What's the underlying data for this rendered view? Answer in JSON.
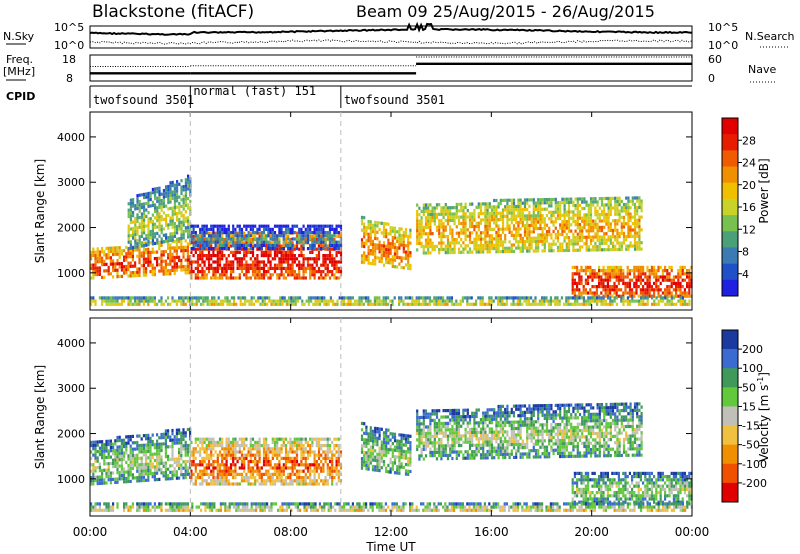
{
  "header": {
    "station": "Blackstone (fitACF)",
    "beam_date": "Beam 09  25/Aug/2015 - 26/Aug/2015"
  },
  "noise_panel": {
    "left_label": "N.Sky",
    "left_ticks": [
      "10^5",
      "10^0"
    ],
    "right_ticks": [
      "10^5",
      "10^0"
    ],
    "right_label": "N.Search"
  },
  "freq_panel": {
    "left_label_line1": "Freq.",
    "left_label_line2": "[MHz]",
    "left_ticks": [
      "18",
      "8"
    ],
    "right_ticks": [
      "60",
      "0"
    ],
    "right_label": "Nave",
    "cpid_label": "CPID",
    "freq_series": [
      {
        "start": 0.0,
        "end": 4.0,
        "value": 10.6
      },
      {
        "start": 4.0,
        "end": 13.0,
        "value": 10.6
      },
      {
        "start": 13.0,
        "end": 24.0,
        "value": 14.9
      }
    ],
    "nave_series": [
      {
        "start": 0.0,
        "end": 4.0,
        "value": 34
      },
      {
        "start": 4.0,
        "end": 13.0,
        "value": 36
      },
      {
        "start": 13.0,
        "end": 24.0,
        "value": 60
      }
    ]
  },
  "cpid_modes": [
    {
      "label": "twofsound 3501",
      "start": 0.0
    },
    {
      "label": "normal (fast) 151",
      "start": 4.0
    },
    {
      "label": "twofsound 3501",
      "start": 10.0
    }
  ],
  "power_panel": {
    "ylabel": "Slant Range [km]",
    "yticks": [
      "1000",
      "2000",
      "3000",
      "4000"
    ],
    "colorbar_label": "Power [dB]",
    "colorbar_ticks": [
      "4",
      "8",
      "12",
      "16",
      "20",
      "24",
      "28"
    ]
  },
  "velocity_panel": {
    "ylabel": "Slant Range [km]",
    "yticks": [
      "1000",
      "2000",
      "3000",
      "4000"
    ],
    "colorbar_label": "Velocity [m s",
    "colorbar_label_sup": "-1",
    "colorbar_label_end": "]",
    "colorbar_ticks": [
      "200",
      "100",
      "50",
      "15",
      "-15",
      "-50",
      "-100",
      "-200"
    ]
  },
  "xaxis": {
    "label": "Time UT",
    "ticks": [
      "00:00",
      "04:00",
      "08:00",
      "12:00",
      "16:00",
      "20:00",
      "00:00"
    ]
  },
  "chart_data": {
    "type": "heatmap",
    "x_range_hours": [
      0,
      24
    ],
    "y_range_km": [
      180,
      4550
    ],
    "power_colors": [
      "#2020e0",
      "#2050c8",
      "#3c7ab4",
      "#4aa078",
      "#78c050",
      "#c8d228",
      "#f0c000",
      "#f09000",
      "#f05a00",
      "#e81c00",
      "#e00000"
    ],
    "velocity_colors": [
      "#1b3aa0",
      "#3b6bd0",
      "#3f9a5a",
      "#62c83c",
      "#c0c0b8",
      "#f0c040",
      "#f09000",
      "#f05000",
      "#e00000"
    ],
    "power_regions": [
      {
        "t0": 0.0,
        "t1": 4.0,
        "r_lo": 850,
        "r_hi": 1500,
        "level": 9,
        "slope": 0.4
      },
      {
        "t0": 1.5,
        "t1": 4.0,
        "r_lo": 1500,
        "r_hi": 2600,
        "level": 5,
        "slope": 0.9
      },
      {
        "t0": 4.0,
        "t1": 10.0,
        "r_lo": 850,
        "r_hi": 1900,
        "level": 10,
        "slope": 0.0
      },
      {
        "t0": 4.0,
        "t1": 10.0,
        "r_lo": 1500,
        "r_hi": 2000,
        "level": 3,
        "slope": 0.0
      },
      {
        "t0": 10.8,
        "t1": 12.8,
        "r_lo": 1200,
        "r_hi": 2200,
        "level": 8,
        "slope": -0.5
      },
      {
        "t0": 13.0,
        "t1": 22.0,
        "r_lo": 1400,
        "r_hi": 2500,
        "level": 7,
        "slope": 0.3
      },
      {
        "t0": 19.2,
        "t1": 24.0,
        "r_lo": 450,
        "r_hi": 1100,
        "level": 10,
        "slope": 0.0
      },
      {
        "t0": 0.0,
        "t1": 24.0,
        "r_lo": 200,
        "r_hi": 420,
        "level": 6,
        "slope": 0.0
      }
    ],
    "velocity_regions": [
      {
        "t0": 0.0,
        "t1": 4.0,
        "r_lo": 850,
        "r_hi": 1800,
        "level": 4,
        "slope": 0.5
      },
      {
        "t0": 4.0,
        "t1": 10.0,
        "r_lo": 850,
        "r_hi": 1900,
        "level": 7,
        "slope": 0.0
      },
      {
        "t0": 10.8,
        "t1": 12.8,
        "r_lo": 1200,
        "r_hi": 2200,
        "level": 4,
        "slope": -0.5
      },
      {
        "t0": 13.0,
        "t1": 22.0,
        "r_lo": 1400,
        "r_hi": 2500,
        "level": 4,
        "slope": 0.3
      },
      {
        "t0": 19.2,
        "t1": 24.0,
        "r_lo": 450,
        "r_hi": 1100,
        "level": 4,
        "slope": 0.0
      },
      {
        "t0": 0.0,
        "t1": 24.0,
        "r_lo": 200,
        "r_hi": 420,
        "level": 5,
        "slope": 0.0
      }
    ]
  }
}
